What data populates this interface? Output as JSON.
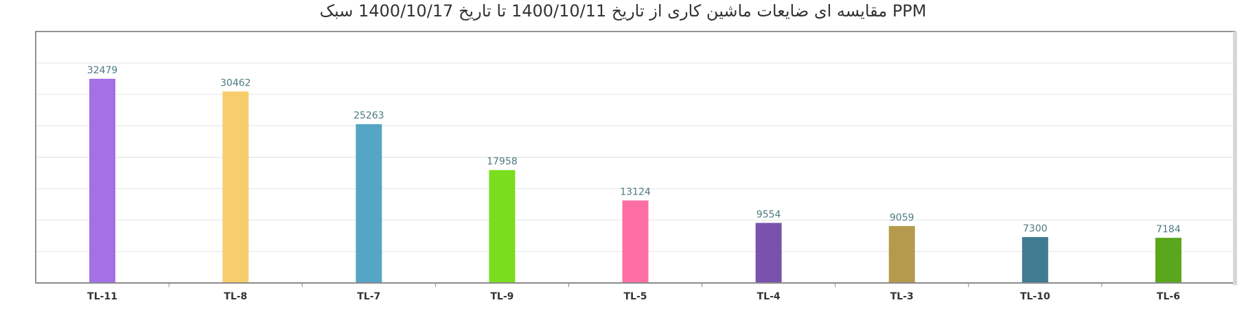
{
  "chart_data": {
    "type": "bar",
    "title": "PPM مقایسه ای ضایعات ماشین کاری از تاریخ 1400/10/11 تا تاریخ 1400/10/17 سبک",
    "categories": [
      "TL-11",
      "TL-8",
      "TL-7",
      "TL-9",
      "TL-5",
      "TL-4",
      "TL-3",
      "TL-10",
      "TL-6"
    ],
    "values": [
      32479,
      30462,
      25263,
      17958,
      13124,
      9554,
      9059,
      7300,
      7184
    ],
    "colors": [
      "#a470e6",
      "#f8cd6b",
      "#55a6c6",
      "#7ade1e",
      "#fd6ea5",
      "#7a52ae",
      "#b59a4e",
      "#417b92",
      "#5aa61c"
    ],
    "ylim": [
      0,
      40000
    ],
    "gridline_step": 5000,
    "xlabel": "",
    "ylabel": "",
    "data_labels": true,
    "grid": true,
    "legend": "none"
  }
}
